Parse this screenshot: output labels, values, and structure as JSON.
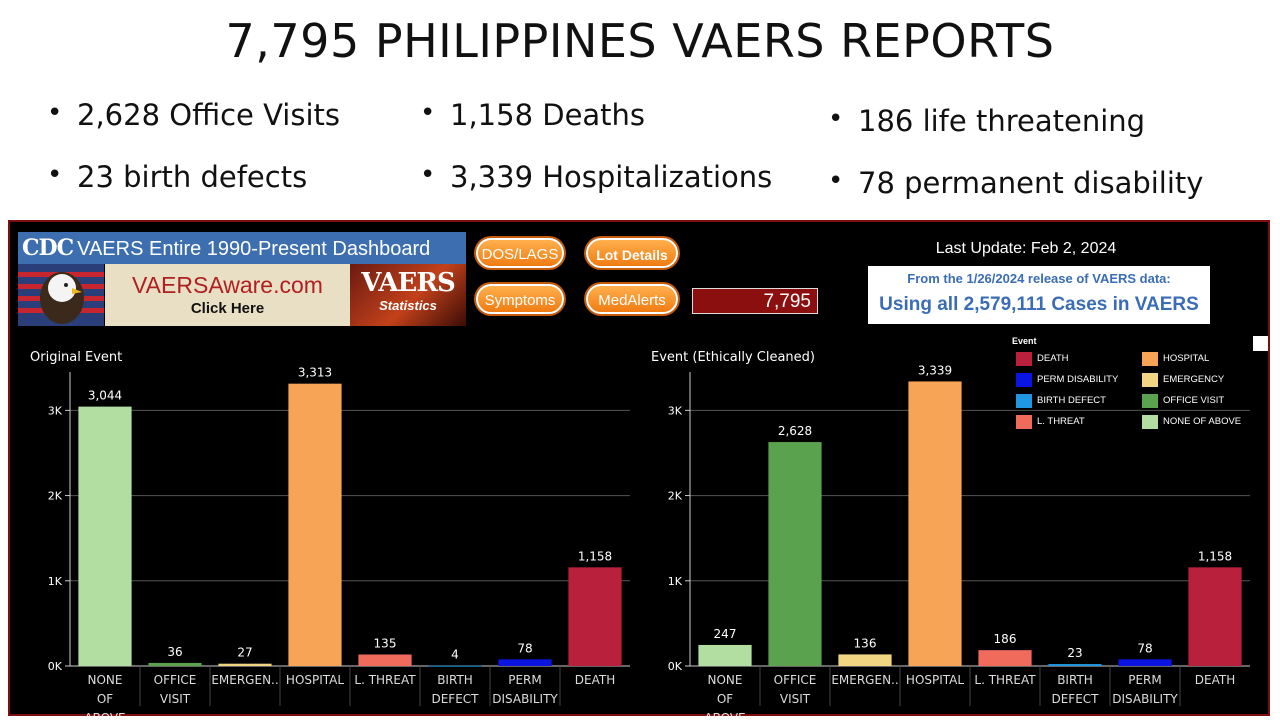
{
  "title": "7,795 PHILIPPINES VAERS REPORTS",
  "bullets": {
    "col1": [
      "2,628 Office Visits",
      "23 birth defects"
    ],
    "col2": [
      "1,158 Deaths",
      "3,339 Hospitalizations"
    ],
    "col3": [
      "186 life threatening",
      "78 permanent disability"
    ]
  },
  "dashboard": {
    "cdc_logo": "CDC",
    "banner": "VAERS Entire 1990-Present Dashboard",
    "vaersaware_site": "VAERSAware.com",
    "vaersaware_click": "Click Here",
    "stats_logo_big": "VAERS",
    "stats_logo_small": "Statistics",
    "buttons": {
      "dos": "DOS/LAGS",
      "lot": "Lot Details",
      "symptoms": "Symptoms",
      "medalerts": "MedAlerts"
    },
    "count": "7,795",
    "last_update": "Last Update: Feb 2, 2024",
    "release_line1": "From the 1/26/2024 release of VAERS data:",
    "release_line2": "Using all 2,579,111 Cases in VAERS",
    "legend_title": "Event",
    "colors": {
      "none": "#b2dfa1",
      "office": "#5aa24e",
      "emergency": "#f2d583",
      "hospital": "#f7a456",
      "threat": "#f06b5c",
      "birth": "#1f97e2",
      "perm": "#0b15e2",
      "death": "#b8203b",
      "axis": "#cccccc",
      "grid": "#555555"
    }
  },
  "chart_data": [
    {
      "type": "bar",
      "title": "Original Event",
      "categories": [
        "NONE OF ABOVE",
        "OFFICE VISIT",
        "EMERGEN..",
        "HOSPITAL",
        "L. THREAT",
        "BIRTH DEFECT",
        "PERM DISABILITY",
        "DEATH"
      ],
      "values": [
        3044,
        36,
        27,
        3313,
        135,
        4,
        78,
        1158
      ],
      "value_labels": [
        "3,044",
        "36",
        "27",
        "3,313",
        "135",
        "4",
        "78",
        "1,158"
      ],
      "color_keys": [
        "none",
        "office",
        "emergency",
        "hospital",
        "threat",
        "birth",
        "perm",
        "death"
      ],
      "yticks": [
        "0K",
        "1K",
        "2K",
        "3K"
      ],
      "ylim": [
        0,
        3450
      ],
      "grid": true
    },
    {
      "type": "bar",
      "title": "Event (Ethically Cleaned)",
      "categories": [
        "NONE OF ABOVE",
        "OFFICE VISIT",
        "EMERGEN..",
        "HOSPITAL",
        "L. THREAT",
        "BIRTH DEFECT",
        "PERM DISABILITY",
        "DEATH"
      ],
      "values": [
        247,
        2628,
        136,
        3339,
        186,
        23,
        78,
        1158
      ],
      "value_labels": [
        "247",
        "2,628",
        "136",
        "3,339",
        "186",
        "23",
        "78",
        "1,158"
      ],
      "color_keys": [
        "none",
        "office",
        "emergency",
        "hospital",
        "threat",
        "birth",
        "perm",
        "death"
      ],
      "yticks": [
        "0K",
        "1K",
        "2K",
        "3K"
      ],
      "ylim": [
        0,
        3450
      ],
      "grid": true,
      "legend": {
        "title": "Event",
        "entries": [
          {
            "label": "DEATH",
            "key": "death"
          },
          {
            "label": "HOSPITAL",
            "key": "hospital"
          },
          {
            "label": "PERM DISABILITY",
            "key": "perm"
          },
          {
            "label": "EMERGENCY",
            "key": "emergency"
          },
          {
            "label": "BIRTH DEFECT",
            "key": "birth"
          },
          {
            "label": "OFFICE VISIT",
            "key": "office"
          },
          {
            "label": "L. THREAT",
            "key": "threat"
          },
          {
            "label": "NONE OF ABOVE",
            "key": "none"
          }
        ]
      }
    }
  ]
}
